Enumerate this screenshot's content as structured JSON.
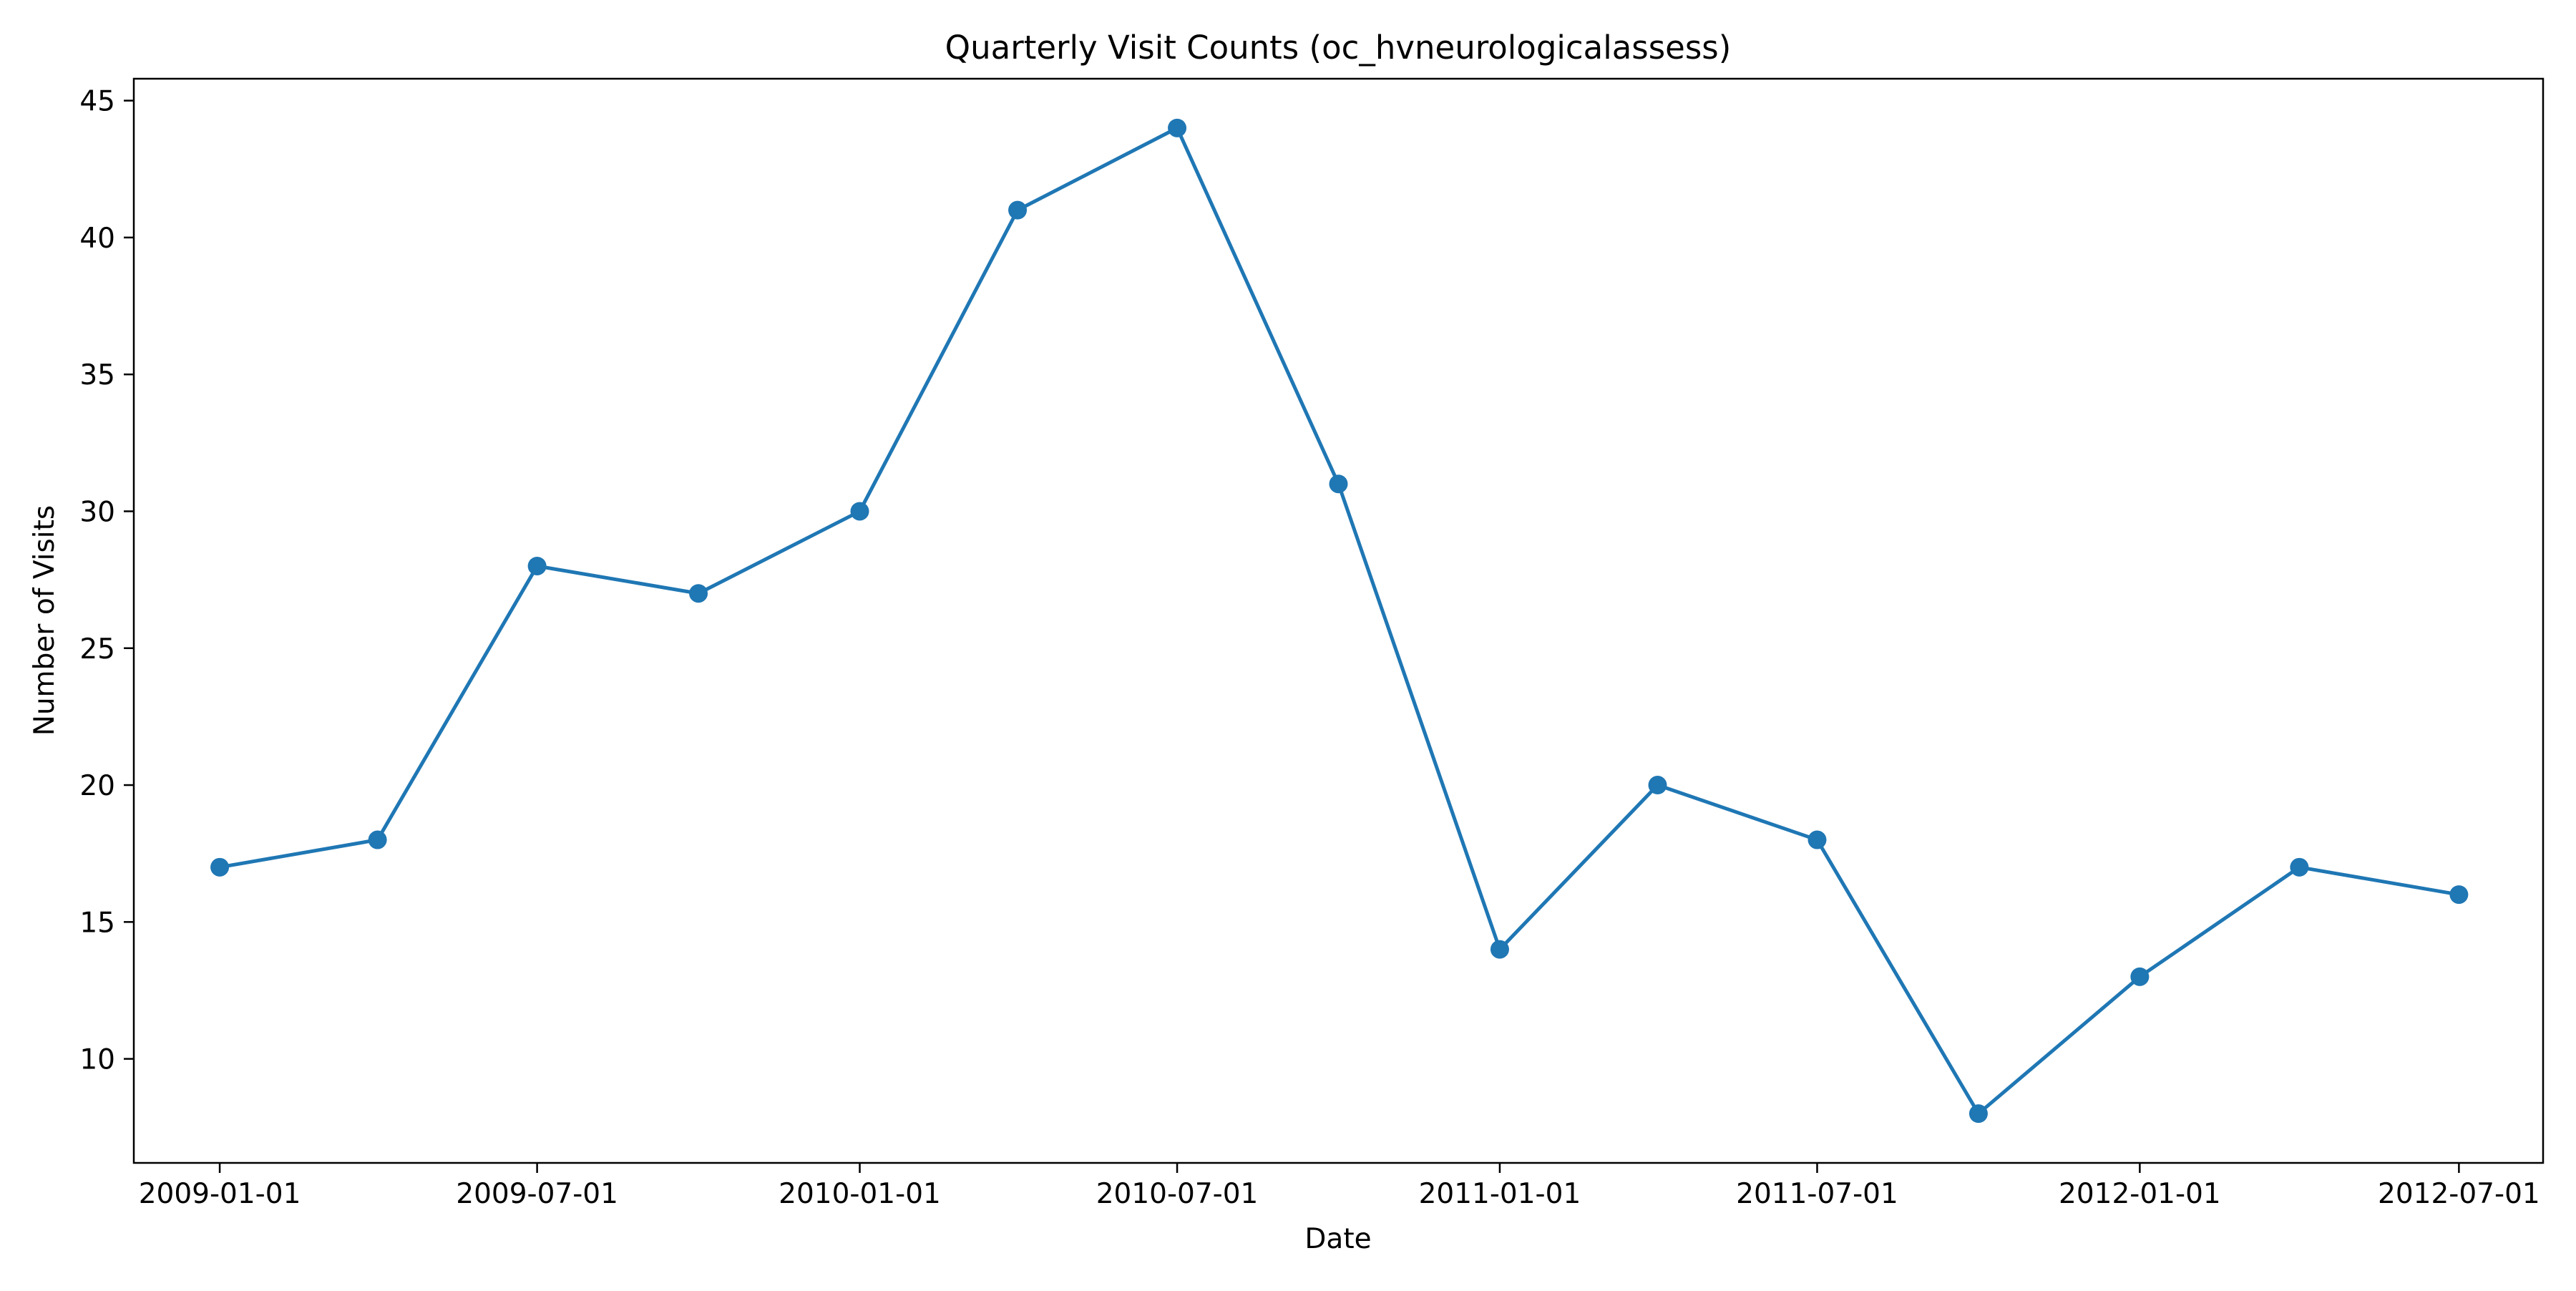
{
  "chart_data": {
    "type": "line",
    "title": "Quarterly Visit Counts (oc_hvneurologicalassess)",
    "xlabel": "Date",
    "ylabel": "Number of Visits",
    "x": [
      "2009-01-01",
      "2009-04-01",
      "2009-07-01",
      "2009-10-01",
      "2010-01-01",
      "2010-04-01",
      "2010-07-01",
      "2010-10-01",
      "2011-01-01",
      "2011-04-01",
      "2011-07-01",
      "2011-10-01",
      "2012-01-01",
      "2012-04-01",
      "2012-07-01"
    ],
    "series": [
      {
        "values": [
          17,
          18,
          28,
          27,
          30,
          41,
          44,
          31,
          14,
          20,
          18,
          8,
          13,
          17,
          16
        ],
        "color": "#1f77b4",
        "marker": "circle"
      }
    ],
    "x_ticks": [
      "2009-01-01",
      "2009-07-01",
      "2010-01-01",
      "2010-07-01",
      "2011-01-01",
      "2011-07-01",
      "2012-01-01",
      "2012-07-01"
    ],
    "y_ticks": [
      "10",
      "15",
      "20",
      "25",
      "30",
      "35",
      "40",
      "45"
    ],
    "ylim": [
      6.2,
      45.8
    ],
    "xlim": [
      "2008-11-13",
      "2012-08-18"
    ],
    "grid": false,
    "legend": "none"
  }
}
